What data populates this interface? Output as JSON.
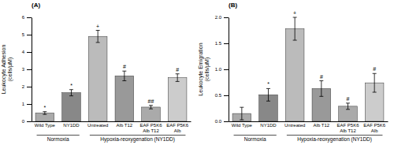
{
  "chart_data": [
    {
      "type": "bar",
      "title": "(A)",
      "y_label": "Leukocyte Adhesion\n(cells/μM)",
      "categories": [
        "Wild Type",
        "NY1DD",
        "Untreated",
        "Alb T12",
        "EAF P5K6\nAlb T12",
        "EAF P5K6 Alb"
      ],
      "values": [
        0.48,
        1.65,
        4.9,
        2.62,
        0.82,
        2.52
      ],
      "errors": [
        0.08,
        0.18,
        0.35,
        0.28,
        0.1,
        0.22
      ],
      "colors": [
        "#aaaaaa",
        "#888888",
        "#bbbbbb",
        "#999999",
        "#aaaaaa",
        "#cccccc"
      ],
      "sig_labels": [
        "*",
        "*",
        "+",
        "#",
        "##",
        "#"
      ],
      "groups": [
        {
          "label": "Normoxia",
          "span": [
            0,
            1
          ]
        },
        {
          "label": "Hypoxia-reoxygenation (NY1DD)",
          "span": [
            2,
            5
          ]
        }
      ],
      "ylim": [
        0,
        6
      ],
      "yticks": [
        0,
        1,
        2,
        3,
        4,
        5,
        6
      ],
      "grid": false
    },
    {
      "type": "bar",
      "title": "(B)",
      "y_label": "Leukocyte Emigration\n(cells/μM)",
      "categories": [
        "Wild Type",
        "NY1DD",
        "Untreated",
        "Alb T12",
        "EAF P5K6\nAlb T12",
        "EAF P5K6 Alb"
      ],
      "values": [
        0.15,
        0.51,
        1.78,
        0.63,
        0.29,
        0.74
      ],
      "errors": [
        0.12,
        0.12,
        0.22,
        0.15,
        0.06,
        0.18
      ],
      "colors": [
        "#aaaaaa",
        "#888888",
        "#bbbbbb",
        "#999999",
        "#aaaaaa",
        "#cccccc"
      ],
      "sig_labels": [
        null,
        "*",
        "+",
        "#",
        "#",
        "#"
      ],
      "groups": [
        {
          "label": "Normoxia",
          "span": [
            0,
            1
          ]
        },
        {
          "label": "Hypoxia-reoxygenation (NY1DD)",
          "span": [
            2,
            5
          ]
        }
      ],
      "ylim": [
        0,
        2.0
      ],
      "yticks": [
        {
          "value": 0,
          "label": "0.0"
        },
        0.5,
        {
          "value": 1,
          "label": "1.0"
        },
        1.5,
        {
          "value": 2,
          "label": "2.0"
        }
      ],
      "grid": false
    }
  ]
}
